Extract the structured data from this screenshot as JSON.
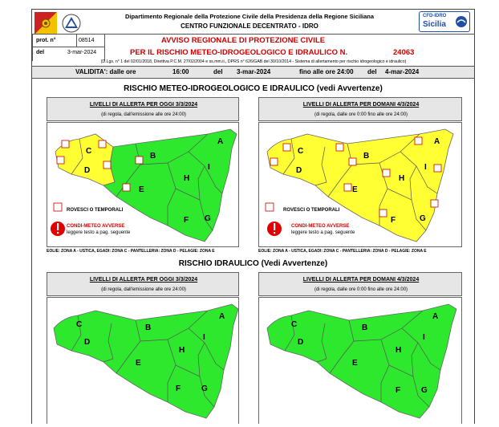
{
  "header": {
    "dept_line": "Dipartimento Regionale della Protezione Civile della Presidenza della Regione Siciliana",
    "centre_line": "CENTRO FUNZIONALE DECENTRATO - IDRO",
    "logo_right_top": "CFD-IDRO",
    "logo_right_bottom": "Sicilia"
  },
  "protocol": {
    "prot_label": "prot. n°",
    "prot_value": "08514",
    "del_label": "del",
    "del_value": "3-mar-2024"
  },
  "notice": {
    "title_line1": "AVVISO REGIONALE DI PROTEZIONE CIVILE",
    "title_line2": "PER IL RISCHIO METEO-IDROGEOLOGICO E IDRAULICO N.",
    "number": "24063",
    "legal_ref": "(D.Lgs. n° 1 del 02/01/2018, Direttiva P.C.M. 27/02/2004 e ss.mm.ii., DPRS n° 626/GAB del 30/10/2014 - Sistema di allertamento per rischio idrogeologico e idraulico)"
  },
  "validity": {
    "label": "VALIDITA': dalle ore",
    "from_time": "16:00",
    "del_label": "del",
    "from_date": "3-mar-2024",
    "until_label": "fino alle ore 24:00",
    "del2_label": "del",
    "to_date": "4-mar-2024"
  },
  "section1": {
    "title": "RISCHIO METEO-IDROGEOLOGICO E IDRAULICO (vedi Avvertenze)",
    "today_title": "LIVELLI DI ALLERTA PER OGGI 3/3/2024",
    "today_sub": "(di regola, dall'emissione alle ore 24:00)",
    "tomorrow_title": "LIVELLI DI ALLERTA PER DOMANI 4/3/2024",
    "tomorrow_sub": "(di regola, dalle ore 0:00 fino alle ore 24:00)",
    "legend_showers": "ROVESCI O TEMPORALI",
    "legend_adverse": "CONDI-METEO AVVERSE",
    "legend_adverse_sub": "leggere testo a pag. seguente",
    "islands_left": "EOLIE: ZONA A - USTICA, EGADI: ZONA C - PANTELLERIA: ZONA D - PELAGIE: ZONA E",
    "islands_right": "EOLIE: ZONA A - USTICA, EGADI: ZONA C - PANTELLERIA: ZONA D - PELAGIE: ZONA E"
  },
  "section2": {
    "title": "RISCHIO IDRAULICO (Vedi Avvertenze)",
    "today_title": "LIVELLI DI ALLERTA PER OGGI 3/3/2024",
    "today_sub": "(di regola, dall'emissione alle ore 24:00)",
    "tomorrow_title": "LIVELLI DI ALLERTA PER DOMANI 4/3/2024",
    "tomorrow_sub": "(di regola, dalle ore 0:00 fino alle ore 24:00)"
  },
  "zones": [
    "A",
    "B",
    "C",
    "D",
    "E",
    "F",
    "G",
    "H",
    "I"
  ],
  "colors": {
    "green": "#2ee82e",
    "yellow": "#ffff33",
    "title_red": "#cc0000",
    "warning_red": "#e00000"
  }
}
